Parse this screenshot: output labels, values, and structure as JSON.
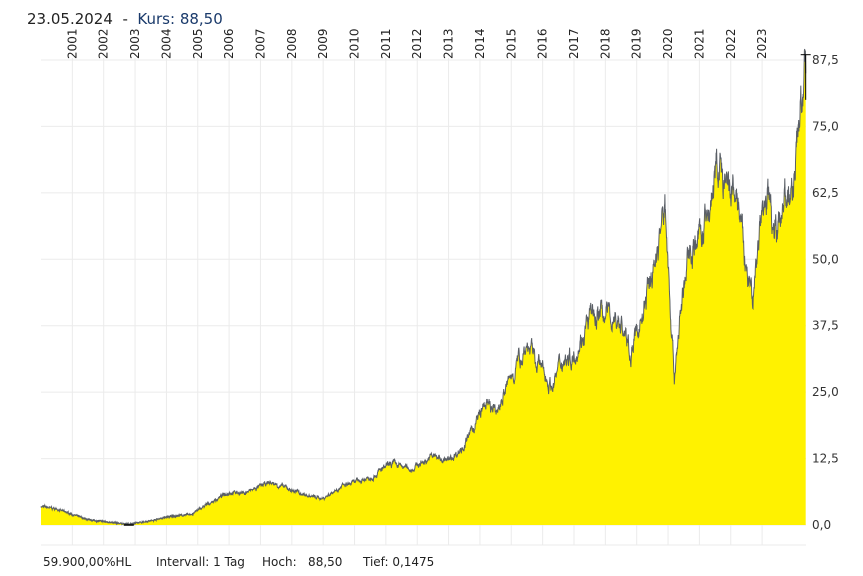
{
  "header": {
    "date": "23.05.2024",
    "separator": "-",
    "kurs_label": "Kurs:",
    "kurs_value": "88,50"
  },
  "footer": {
    "hl": "59.900,00%HL",
    "interval": "Intervall: 1 Tag",
    "high": "Hoch:   88,50",
    "low": "Tief: 0,1475"
  },
  "colors": {
    "fill": "#fff200",
    "line": "#5a5f66",
    "grid": "#ebebeb"
  },
  "chart_data": {
    "type": "area",
    "title": "23.05.2024 - Kurs: 88,50",
    "x_ticks": [
      "2001",
      "2002",
      "2003",
      "2004",
      "2005",
      "2006",
      "2007",
      "2008",
      "2009",
      "2010",
      "2011",
      "2012",
      "2013",
      "2014",
      "2015",
      "2016",
      "2017",
      "2018",
      "2019",
      "2020",
      "2021",
      "2022",
      "2023"
    ],
    "y_ticks": [
      "0,0",
      "12,5",
      "25,0",
      "37,5",
      "50,0",
      "62,5",
      "75,0",
      "87,5"
    ],
    "xlim": [
      2000.0,
      2024.4
    ],
    "ylim": [
      0,
      87.5
    ],
    "grid": true,
    "points": [
      [
        2000.0,
        3.5
      ],
      [
        2000.5,
        3.0
      ],
      [
        2001.0,
        2.0
      ],
      [
        2001.5,
        1.0
      ],
      [
        2002.5,
        0.3
      ],
      [
        2002.8,
        0.15
      ],
      [
        2003.5,
        0.8
      ],
      [
        2004.0,
        1.5
      ],
      [
        2004.8,
        2.0
      ],
      [
        2005.2,
        3.5
      ],
      [
        2006.0,
        6.2
      ],
      [
        2006.5,
        6.0
      ],
      [
        2007.3,
        8.0
      ],
      [
        2007.8,
        7.0
      ],
      [
        2008.5,
        5.5
      ],
      [
        2009.0,
        5.0
      ],
      [
        2009.5,
        7.0
      ],
      [
        2010.5,
        9.0
      ],
      [
        2011.2,
        11.5
      ],
      [
        2011.8,
        10.5
      ],
      [
        2012.5,
        13.0
      ],
      [
        2013.0,
        12.0
      ],
      [
        2013.5,
        15.0
      ],
      [
        2014.2,
        23.0
      ],
      [
        2014.5,
        21.0
      ],
      [
        2015.0,
        28.0
      ],
      [
        2015.5,
        34.0
      ],
      [
        2015.8,
        31.0
      ],
      [
        2016.3,
        26.0
      ],
      [
        2016.6,
        31.0
      ],
      [
        2017.0,
        32.0
      ],
      [
        2017.5,
        39.0
      ],
      [
        2018.0,
        40.0
      ],
      [
        2018.5,
        38.0
      ],
      [
        2018.8,
        32.0
      ],
      [
        2019.2,
        40.0
      ],
      [
        2019.6,
        50.0
      ],
      [
        2019.9,
        60.0
      ],
      [
        2020.2,
        28.0
      ],
      [
        2020.4,
        40.0
      ],
      [
        2020.7,
        52.0
      ],
      [
        2021.2,
        56.0
      ],
      [
        2021.6,
        68.0
      ],
      [
        2021.9,
        62.0
      ],
      [
        2022.2,
        62.0
      ],
      [
        2022.5,
        48.0
      ],
      [
        2022.7,
        42.0
      ],
      [
        2022.9,
        55.0
      ],
      [
        2023.2,
        62.0
      ],
      [
        2023.5,
        55.0
      ],
      [
        2023.7,
        63.0
      ],
      [
        2023.9,
        60.0
      ],
      [
        2024.0,
        64.0
      ],
      [
        2024.2,
        78.0
      ],
      [
        2024.39,
        85.0
      ]
    ],
    "high": 88.5,
    "low": 0.1475
  }
}
